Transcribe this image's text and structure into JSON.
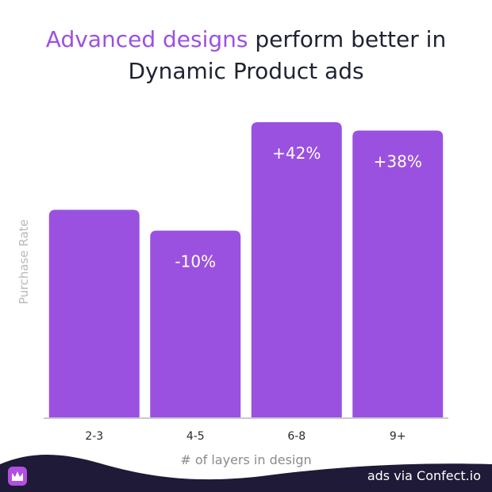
{
  "title": {
    "highlight": "Advanced designs",
    "rest_line1": " perform better in",
    "line2": "Dynamic Product ads"
  },
  "chart_data": {
    "type": "bar",
    "title": "Advanced designs perform better in Dynamic Product ads",
    "xlabel": "# of layers in design",
    "ylabel": "Purchase Rate",
    "categories": [
      "2-3",
      "4-5",
      "6-8",
      "9+"
    ],
    "values": [
      100,
      90,
      142,
      138
    ],
    "data_labels": [
      "",
      "-10%",
      "+42%",
      "+38%"
    ],
    "ylim": [
      0,
      150
    ],
    "grid": false,
    "legend": "none",
    "bar_color": "#9b51e0"
  },
  "footer": {
    "credit": "ads via Confect.io",
    "logo_icon": "confect-logo-icon",
    "wave_color": "#1e1a38"
  }
}
